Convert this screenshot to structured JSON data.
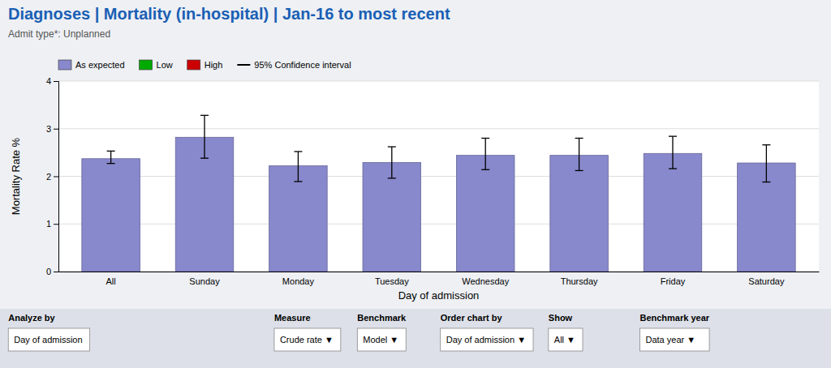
{
  "chart_data": {
    "type": "bar",
    "title": "Diagnoses | Mortality (in-hospital) | Jan-16 to most recent",
    "subtitle": "Admit type*: Unplanned",
    "xlabel": "Day of admission",
    "ylabel": "Mortality Rate %",
    "categories": [
      "All",
      "Sunday",
      "Monday",
      "Tuesday",
      "Wednesday",
      "Thursday",
      "Friday",
      "Saturday"
    ],
    "values": [
      2.37,
      2.82,
      2.22,
      2.29,
      2.44,
      2.44,
      2.48,
      2.28
    ],
    "ci_lower": [
      2.27,
      2.38,
      1.89,
      1.96,
      2.14,
      2.12,
      2.16,
      1.88
    ],
    "ci_upper": [
      2.53,
      3.28,
      2.52,
      2.62,
      2.8,
      2.8,
      2.84,
      2.66
    ],
    "color": "#8888cc",
    "ylim": [
      0,
      4
    ],
    "yticks": [
      0,
      1,
      2,
      3,
      4
    ],
    "grid": true,
    "legend_entries": [
      {
        "name": "As expected",
        "color": "#8888cc",
        "marker": "patch"
      },
      {
        "name": "Low",
        "color": "#00aa00",
        "marker": "patch"
      },
      {
        "name": "High",
        "color": "#cc0000",
        "marker": "patch"
      },
      {
        "name": "95% Confidence interval",
        "color": "#000000",
        "marker": "line"
      }
    ]
  },
  "controls": [
    {
      "label": "Analyze by",
      "value": "Day of admission"
    },
    {
      "label": "Measure",
      "value": "Crude rate ▼"
    },
    {
      "label": "Benchmark",
      "value": "Model ▼"
    },
    {
      "label": "Order chart by",
      "value": "Day of admission ▼"
    },
    {
      "label": "Show",
      "value": "All ▼"
    },
    {
      "label": "Benchmark year",
      "value": "Data year ▼"
    }
  ]
}
